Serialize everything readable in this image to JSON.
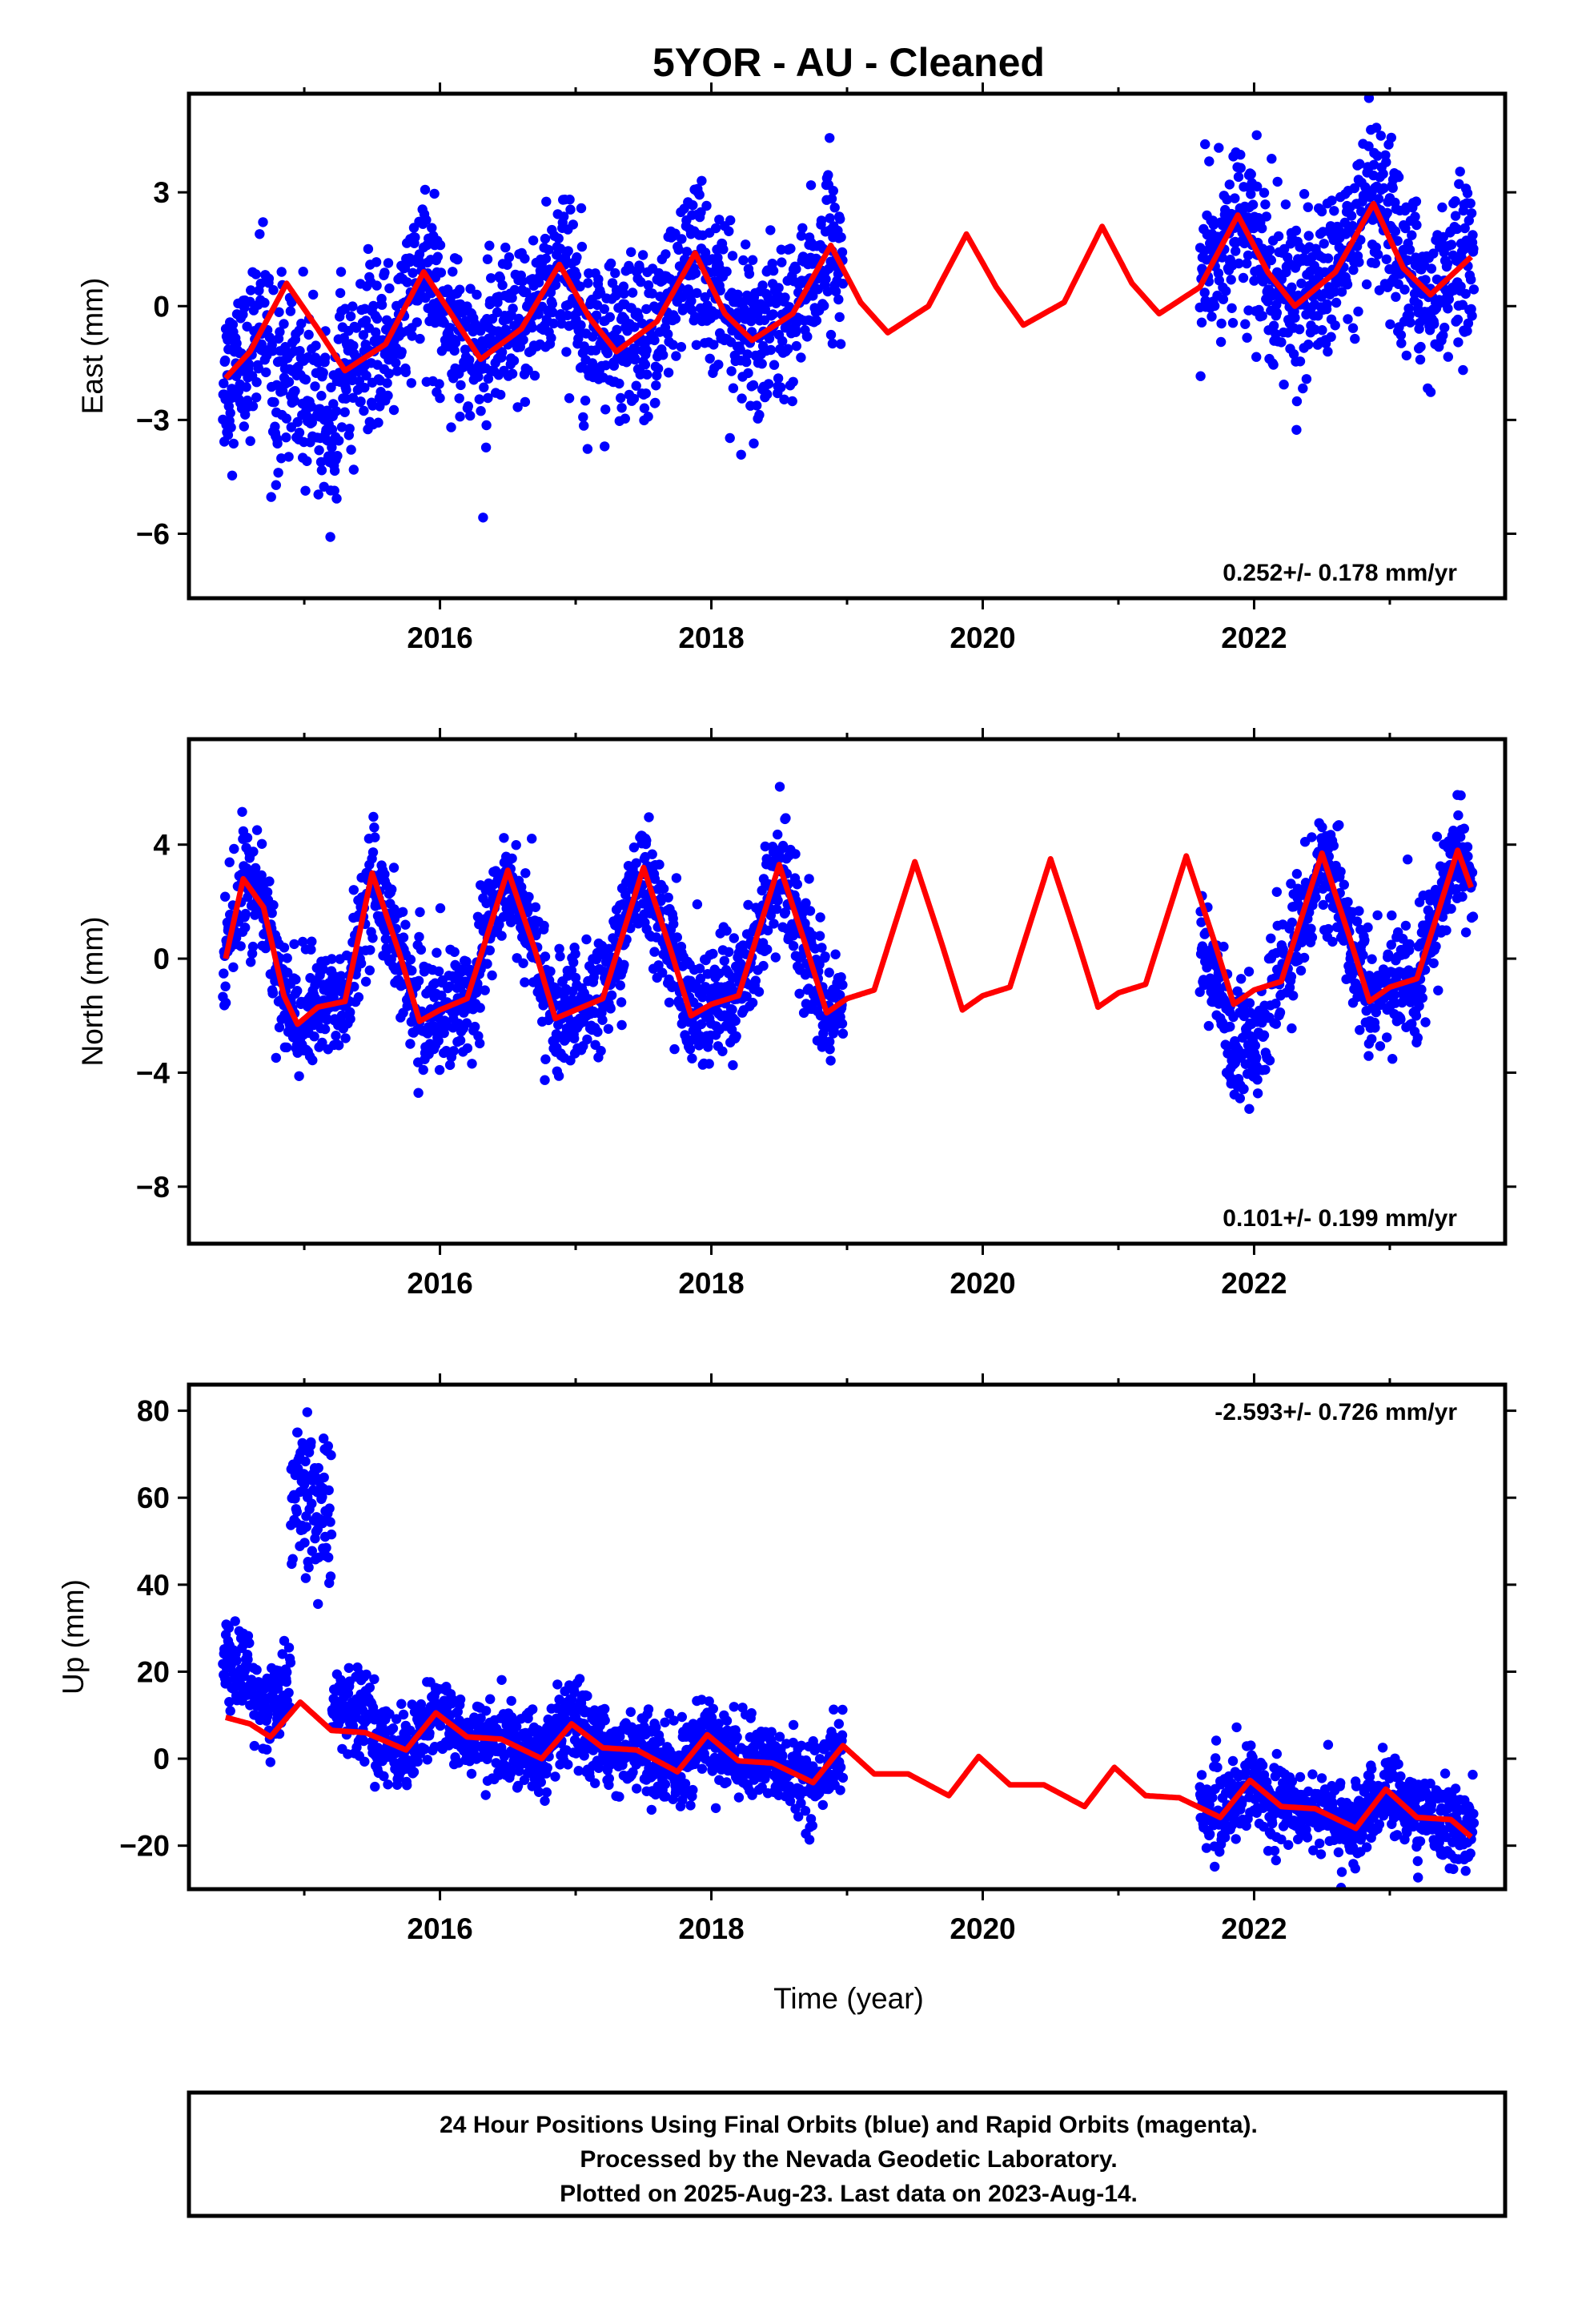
{
  "figure": {
    "title": "5YOR  - AU - Cleaned",
    "xlabel": "Time (year)",
    "footer": [
      "24 Hour Positions Using Final Orbits (blue) and Rapid Orbits (magenta).",
      "Processed by the Nevada Geodetic Laboratory.",
      "Plotted on 2025-Aug-23. Last data on 2023-Aug-14."
    ]
  },
  "colors": {
    "points": "#0000ff",
    "model": "#ff0000",
    "frame": "#000000"
  },
  "chart_data": [
    {
      "type": "scatter",
      "name": "east",
      "ylabel": "East (mm)",
      "xlim": [
        2014.15,
        2023.85
      ],
      "ylim": [
        -7.7,
        5.6
      ],
      "xticks": [
        2016,
        2018,
        2020,
        2022
      ],
      "yticks": [
        3,
        0,
        -3,
        -6
      ],
      "ytick_labels": [
        "3",
        "0",
        "−3",
        "−6"
      ],
      "rate_text": "0.252+/- 0.178 mm/yr",
      "rate_position": "bottom-right",
      "series": [
        {
          "name": "",
          "role": "points",
          "segments": [
            [
              2014.4,
              2018.97
            ],
            [
              2021.6,
              2023.62
            ]
          ],
          "trend": [
            0,
            0.252
          ],
          "annual_amp": 1.35,
          "annual_peak": 0.87,
          "noise": 1.05,
          "anomalies": [
            {
              "start": 2014.75,
              "end": 2015.25,
              "offset": -2.2
            }
          ]
        },
        {
          "name": "",
          "role": "model",
          "x_range": [
            2014.42,
            2023.6
          ],
          "curve": [
            [
              2014.42,
              -1.9
            ],
            [
              2014.6,
              -1.2
            ],
            [
              2014.87,
              0.6
            ],
            [
              2015.1,
              -0.6
            ],
            [
              2015.3,
              -1.7
            ],
            [
              2015.6,
              -1.0
            ],
            [
              2015.88,
              0.9
            ],
            [
              2016.1,
              -0.3
            ],
            [
              2016.3,
              -1.4
            ],
            [
              2016.6,
              -0.6
            ],
            [
              2016.88,
              1.1
            ],
            [
              2017.1,
              -0.3
            ],
            [
              2017.3,
              -1.2
            ],
            [
              2017.6,
              -0.4
            ],
            [
              2017.88,
              1.4
            ],
            [
              2018.1,
              -0.2
            ],
            [
              2018.3,
              -0.9
            ],
            [
              2018.6,
              -0.2
            ],
            [
              2018.88,
              1.6
            ],
            [
              2019.1,
              0.1
            ],
            [
              2019.3,
              -0.7
            ],
            [
              2019.6,
              0.0
            ],
            [
              2019.88,
              1.9
            ],
            [
              2020.1,
              0.5
            ],
            [
              2020.3,
              -0.5
            ],
            [
              2020.6,
              0.1
            ],
            [
              2020.88,
              2.1
            ],
            [
              2021.1,
              0.6
            ],
            [
              2021.3,
              -0.2
            ],
            [
              2021.6,
              0.5
            ],
            [
              2021.88,
              2.4
            ],
            [
              2022.1,
              0.9
            ],
            [
              2022.3,
              0.0
            ],
            [
              2022.6,
              0.9
            ],
            [
              2022.88,
              2.7
            ],
            [
              2023.1,
              1.0
            ],
            [
              2023.3,
              0.3
            ],
            [
              2023.6,
              1.3
            ]
          ]
        }
      ]
    },
    {
      "type": "scatter",
      "name": "north",
      "ylabel": "North (mm)",
      "xlim": [
        2014.15,
        2023.85
      ],
      "ylim": [
        -10,
        7.7
      ],
      "xticks": [
        2016,
        2018,
        2020,
        2022
      ],
      "yticks": [
        4,
        0,
        -4,
        -8
      ],
      "ytick_labels": [
        "4",
        "0",
        "−4",
        "−8"
      ],
      "rate_text": "0.101+/- 0.199 mm/yr",
      "rate_position": "bottom-right",
      "series": [
        {
          "name": "",
          "role": "points",
          "segments": [
            [
              2014.4,
              2018.97
            ],
            [
              2021.6,
              2023.62
            ]
          ],
          "trend": [
            0,
            0.101
          ],
          "annual_amp": 2.6,
          "annual_peak": 0.5,
          "noise": 1.0,
          "anomalies": [
            {
              "start": 2021.6,
              "end": 2022.1,
              "offset": -1.5
            }
          ]
        },
        {
          "name": "",
          "role": "model",
          "x_range": [
            2014.42,
            2023.6
          ],
          "curve": [
            [
              2014.42,
              0.0
            ],
            [
              2014.55,
              2.8
            ],
            [
              2014.7,
              1.8
            ],
            [
              2014.85,
              -1.3
            ],
            [
              2014.95,
              -2.3
            ],
            [
              2015.1,
              -1.7
            ],
            [
              2015.3,
              -1.5
            ],
            [
              2015.5,
              3.0
            ],
            [
              2015.7,
              0.2
            ],
            [
              2015.85,
              -2.2
            ],
            [
              2016.0,
              -1.8
            ],
            [
              2016.2,
              -1.4
            ],
            [
              2016.5,
              3.1
            ],
            [
              2016.7,
              0.3
            ],
            [
              2016.85,
              -2.1
            ],
            [
              2017.0,
              -1.8
            ],
            [
              2017.2,
              -1.4
            ],
            [
              2017.5,
              3.2
            ],
            [
              2017.7,
              0.3
            ],
            [
              2017.85,
              -2.0
            ],
            [
              2018.0,
              -1.6
            ],
            [
              2018.2,
              -1.3
            ],
            [
              2018.5,
              3.3
            ],
            [
              2018.7,
              0.4
            ],
            [
              2018.85,
              -1.9
            ],
            [
              2019.0,
              -1.4
            ],
            [
              2019.2,
              -1.1
            ],
            [
              2019.5,
              3.4
            ],
            [
              2019.7,
              0.5
            ],
            [
              2019.85,
              -1.8
            ],
            [
              2020.0,
              -1.3
            ],
            [
              2020.2,
              -1.0
            ],
            [
              2020.5,
              3.5
            ],
            [
              2020.7,
              0.6
            ],
            [
              2020.85,
              -1.7
            ],
            [
              2021.0,
              -1.2
            ],
            [
              2021.2,
              -0.9
            ],
            [
              2021.5,
              3.6
            ],
            [
              2021.7,
              0.7
            ],
            [
              2021.85,
              -1.6
            ],
            [
              2022.0,
              -1.1
            ],
            [
              2022.2,
              -0.8
            ],
            [
              2022.5,
              3.7
            ],
            [
              2022.7,
              0.8
            ],
            [
              2022.85,
              -1.5
            ],
            [
              2023.0,
              -1.0
            ],
            [
              2023.2,
              -0.7
            ],
            [
              2023.5,
              3.8
            ],
            [
              2023.6,
              2.5
            ]
          ]
        }
      ]
    },
    {
      "type": "scatter",
      "name": "up",
      "ylabel": "Up (mm)",
      "xlim": [
        2014.15,
        2023.85
      ],
      "ylim": [
        -30,
        86
      ],
      "xticks": [
        2016,
        2018,
        2020,
        2022
      ],
      "yticks": [
        80,
        60,
        40,
        20,
        0,
        -20
      ],
      "ytick_labels": [
        "80",
        "60",
        "40",
        "20",
        "0",
        "−20"
      ],
      "rate_text": "-2.593+/- 0.726 mm/yr",
      "rate_position": "top-right",
      "series": [
        {
          "name": "",
          "role": "points",
          "segments": [
            [
              2014.4,
              2018.97
            ],
            [
              2021.6,
              2023.62
            ]
          ],
          "trend": [
            6,
            -2.593
          ],
          "annual_amp": 3.0,
          "annual_peak": 0.95,
          "noise": 4.5,
          "anomalies": [
            {
              "start": 2014.4,
              "end": 2014.6,
              "offset": 13
            },
            {
              "start": 2014.6,
              "end": 2014.9,
              "offset": 6
            },
            {
              "start": 2014.9,
              "end": 2015.2,
              "offset": 50
            },
            {
              "start": 2015.2,
              "end": 2015.5,
              "offset": 5
            }
          ]
        },
        {
          "name": "",
          "role": "model",
          "x_range": [
            2014.42,
            2023.6
          ],
          "curve": [
            [
              2014.42,
              9.5
            ],
            [
              2014.6,
              8.0
            ],
            [
              2014.75,
              5.0
            ],
            [
              2014.97,
              13.0
            ],
            [
              2015.2,
              6.5
            ],
            [
              2015.45,
              6.0
            ],
            [
              2015.75,
              2.0
            ],
            [
              2015.97,
              10.5
            ],
            [
              2016.2,
              5.0
            ],
            [
              2016.45,
              4.5
            ],
            [
              2016.75,
              0.0
            ],
            [
              2016.97,
              8.0
            ],
            [
              2017.2,
              2.5
            ],
            [
              2017.45,
              2.0
            ],
            [
              2017.75,
              -3.0
            ],
            [
              2017.97,
              5.5
            ],
            [
              2018.2,
              -0.5
            ],
            [
              2018.45,
              -1.0
            ],
            [
              2018.75,
              -5.5
            ],
            [
              2018.97,
              3.0
            ],
            [
              2019.2,
              -3.5
            ],
            [
              2019.45,
              -3.5
            ],
            [
              2019.75,
              -8.5
            ],
            [
              2019.97,
              0.5
            ],
            [
              2020.2,
              -6.0
            ],
            [
              2020.45,
              -6.0
            ],
            [
              2020.75,
              -11.0
            ],
            [
              2020.97,
              -2.0
            ],
            [
              2021.2,
              -8.5
            ],
            [
              2021.45,
              -9.0
            ],
            [
              2021.75,
              -13.5
            ],
            [
              2021.97,
              -5.0
            ],
            [
              2022.2,
              -11.0
            ],
            [
              2022.45,
              -11.5
            ],
            [
              2022.75,
              -16.0
            ],
            [
              2022.97,
              -7.0
            ],
            [
              2023.2,
              -13.5
            ],
            [
              2023.45,
              -14.0
            ],
            [
              2023.6,
              -18.0
            ]
          ]
        }
      ]
    }
  ]
}
